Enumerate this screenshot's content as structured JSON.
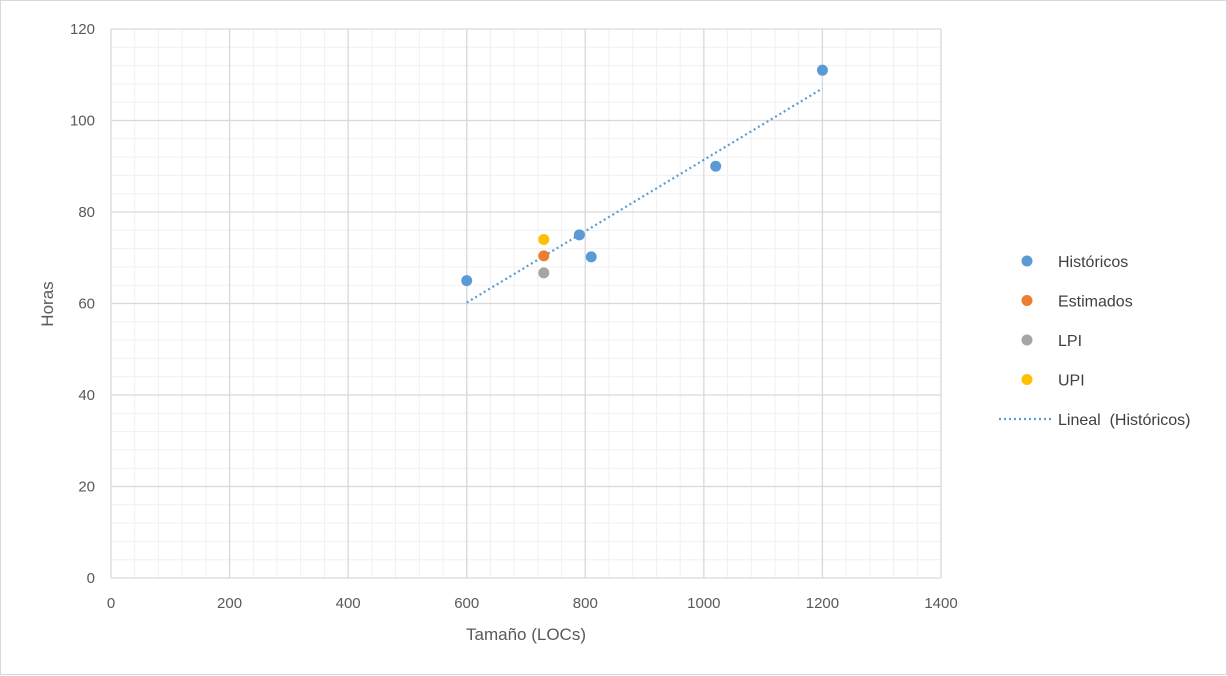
{
  "chart_data": {
    "type": "scatter",
    "title": "",
    "xlabel": "Tamaño (LOCs)",
    "ylabel": "Horas",
    "xlim": [
      0,
      1400
    ],
    "ylim": [
      0,
      120
    ],
    "x_ticks": [
      0,
      200,
      400,
      600,
      800,
      1000,
      1200,
      1400
    ],
    "y_ticks": [
      0,
      20,
      40,
      60,
      80,
      100,
      120
    ],
    "x_minor_step": 40,
    "y_minor_step": 4,
    "grid": true,
    "legend_position": "right",
    "series": [
      {
        "name": "Históricos",
        "color": "#5b9bd5",
        "points": [
          [
            600,
            65
          ],
          [
            790,
            75
          ],
          [
            810,
            70.2
          ],
          [
            1020,
            90
          ],
          [
            1200,
            111
          ]
        ]
      },
      {
        "name": "Estimados",
        "color": "#ed7d31",
        "points": [
          [
            730,
            70.4
          ]
        ]
      },
      {
        "name": "LPI",
        "color": "#a5a5a5",
        "points": [
          [
            730,
            66.7
          ]
        ]
      },
      {
        "name": "UPI",
        "color": "#ffc000",
        "points": [
          [
            730,
            74
          ]
        ]
      }
    ],
    "trendline": {
      "name": "Lineal  (Históricos)",
      "color": "#5b9bd5",
      "style": "dotted",
      "points": [
        [
          600,
          60.2
        ],
        [
          1200,
          107
        ]
      ]
    }
  }
}
